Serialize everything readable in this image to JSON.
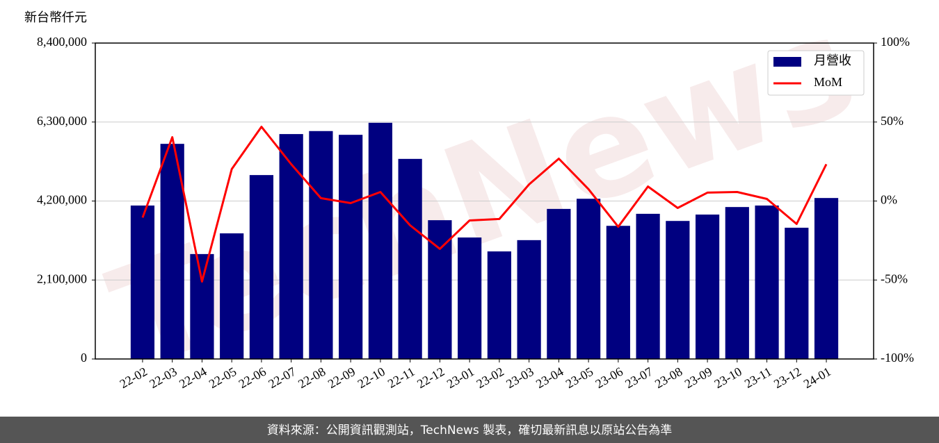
{
  "chart_data": {
    "type": "bar",
    "y_label": "新台幣仟元",
    "watermark": "TechNews",
    "source": "資料來源：公開資訊觀測站，TechNews 製表，確切最新訊息以原站公告為準",
    "categories": [
      "22-02",
      "22-03",
      "22-04",
      "22-05",
      "22-06",
      "22-07",
      "22-08",
      "22-09",
      "22-10",
      "22-11",
      "22-12",
      "23-01",
      "23-02",
      "23-03",
      "23-04",
      "23-05",
      "23-06",
      "23-07",
      "23-08",
      "23-09",
      "23-10",
      "23-11",
      "23-12",
      "24-01"
    ],
    "series": [
      {
        "name": "月營收",
        "color": "#000080",
        "values": [
          4080000,
          5720000,
          2790000,
          3340000,
          4890000,
          5980000,
          6060000,
          5960000,
          6280000,
          5320000,
          3690000,
          3230000,
          2860000,
          3160000,
          3990000,
          4260000,
          3540000,
          3860000,
          3670000,
          3840000,
          4040000,
          4080000,
          3490000,
          4280000
        ]
      },
      {
        "name": "MoM",
        "color": "#ff0000",
        "type": "line",
        "axis": "y2",
        "values": [
          -10.5,
          40.4,
          -51,
          20.2,
          47,
          23.3,
          1.8,
          -1.3,
          5.7,
          -15.4,
          -30.3,
          -12.3,
          -11.4,
          10.5,
          26.8,
          7.5,
          -16.3,
          9.2,
          -4.4,
          5.3,
          5.7,
          1.3,
          -14.5,
          23.3
        ]
      }
    ],
    "ylim": [
      0,
      8400000
    ],
    "yticks": [
      0,
      {
        "value": 2100000,
        "label": "2,100,000"
      },
      {
        "value": 4200000,
        "label": "4,200,000"
      },
      {
        "value": 6300000,
        "label": "6,300,000"
      },
      {
        "value": 8400000,
        "label": "8,400,000"
      }
    ],
    "y2lim": [
      -100,
      100
    ],
    "y2ticks": [
      {
        "value": -100,
        "label": "-100%"
      },
      {
        "value": -50,
        "label": "-50%"
      },
      {
        "value": 0,
        "label": "0%"
      },
      {
        "value": 50,
        "label": "50%"
      },
      {
        "value": 100,
        "label": "100%"
      }
    ],
    "grid": true,
    "legend": "upper right"
  }
}
